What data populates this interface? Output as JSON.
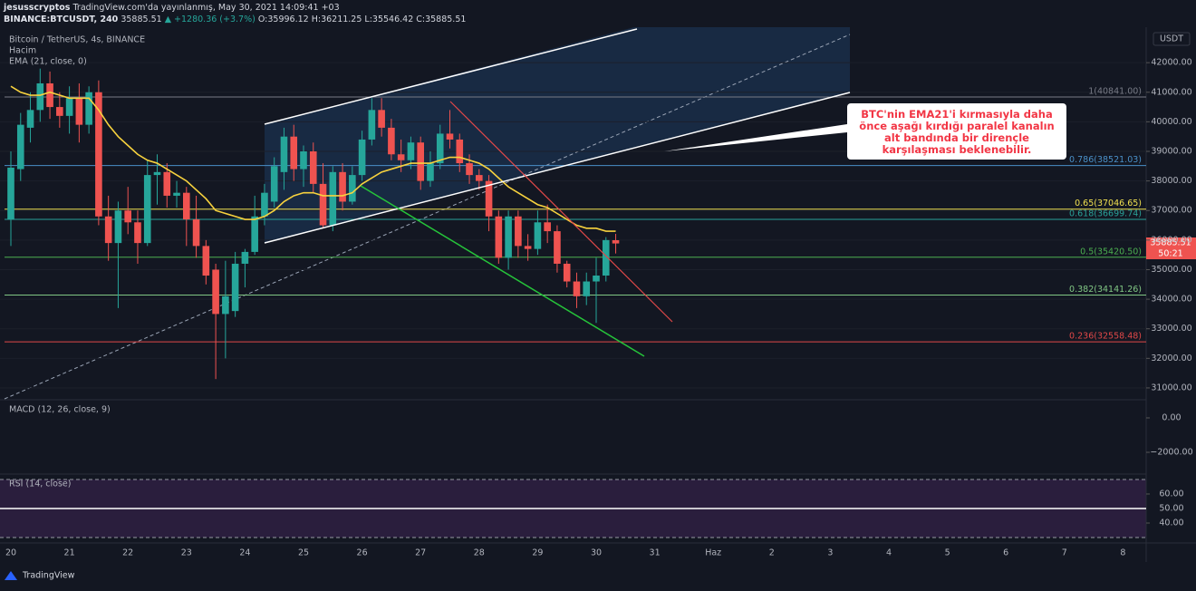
{
  "header": {
    "author": "jesusscryptos",
    "published": "TradingView.com'da yayınlanmış, May 30, 2021 14:09:41 +03",
    "symbol": "BINANCE:BTCUSDT, 240",
    "last": "35885.51",
    "change": "▲ +1280.36 (+3.7%)",
    "ohlc": "O:35996.12 H:36211.25 L:35546.42 C:35885.51"
  },
  "legend": {
    "title": "Bitcoin / TetherUS, 4s, BINANCE",
    "volume": "Hacim",
    "ema": "EMA (21, close, 0)"
  },
  "currency": "USDT",
  "price_tag": {
    "price": "35885.51",
    "countdown": "50:21"
  },
  "annotation": "BTC'nin EMA21'i kırmasıyla daha önce aşağı kırdığı paralel kanalın alt bandında bir dirençle karşılaşması beklenebilir.",
  "footer": "TradingView",
  "chart_data": {
    "type": "candlestick",
    "categories": [
      "20",
      "21",
      "22",
      "23",
      "24",
      "25",
      "26",
      "27",
      "28",
      "29",
      "30",
      "31",
      "Haz",
      "2",
      "3",
      "4",
      "5",
      "6",
      "7",
      "8"
    ],
    "up_color": "#26a69a",
    "down_color": "#ef5350",
    "ylim": [
      30600,
      43200
    ],
    "yticks": [
      {
        "value": 42000,
        "label": "42000.00"
      },
      {
        "value": 41000,
        "label": "41000.00"
      },
      {
        "value": 40000,
        "label": "40000.00"
      },
      {
        "value": 39000,
        "label": "39000.00"
      },
      {
        "value": 38000,
        "label": "38000.00"
      },
      {
        "value": 37000,
        "label": "37000.00"
      },
      {
        "value": 36000,
        "label": "36000.00"
      },
      {
        "value": 35000,
        "label": "35000.00"
      },
      {
        "value": 34000,
        "label": "34000.00"
      },
      {
        "value": 33000,
        "label": "33000.00"
      },
      {
        "value": 32000,
        "label": "32000.00"
      },
      {
        "value": 31000,
        "label": "31000.00"
      }
    ],
    "open": [
      36700,
      38400,
      39800,
      40400,
      41300,
      40500,
      40200,
      40800,
      39900,
      41000,
      36800,
      35900,
      37000,
      36600,
      35900,
      38200,
      38300,
      37500,
      37600,
      36700,
      35800,
      35000,
      33500,
      33600,
      35200,
      35600,
      36800,
      37300,
      38300,
      39500,
      38400,
      39000,
      37900,
      36500,
      38300,
      37300,
      38200,
      39400,
      40400,
      39800,
      38900,
      38700,
      39300,
      38000,
      38600,
      39600,
      39400,
      38600,
      38200,
      38000,
      36800,
      35400,
      36800,
      35800,
      35700,
      36600,
      36300,
      35200,
      34600,
      34100,
      34600,
      34800,
      35996.12
    ],
    "high": [
      39000,
      40300,
      41000,
      41800,
      41700,
      41000,
      41200,
      41300,
      41200,
      41400,
      37500,
      37300,
      37800,
      37000,
      38700,
      38900,
      38600,
      38000,
      37800,
      37500,
      36000,
      35200,
      35300,
      35600,
      35700,
      37500,
      37900,
      38800,
      39800,
      39900,
      39200,
      39300,
      38600,
      38500,
      38600,
      38500,
      39700,
      40800,
      40800,
      40100,
      39400,
      39500,
      39500,
      39000,
      39900,
      40400,
      39600,
      38900,
      38400,
      38200,
      37000,
      37000,
      37000,
      36200,
      37000,
      37200,
      36500,
      35300,
      34900,
      34900,
      35400,
      36100,
      36211.25
    ],
    "low": [
      35800,
      38000,
      39300,
      40000,
      40100,
      39800,
      39600,
      39300,
      39600,
      36500,
      35300,
      33700,
      36200,
      35200,
      35800,
      37200,
      37100,
      37100,
      35800,
      35400,
      34500,
      31300,
      32000,
      33400,
      34400,
      35500,
      36500,
      37100,
      37700,
      38000,
      37800,
      37600,
      36400,
      36300,
      37000,
      37200,
      38000,
      39200,
      39500,
      38700,
      38300,
      38400,
      37700,
      37800,
      38400,
      39100,
      38300,
      37900,
      37700,
      36300,
      35200,
      35000,
      35400,
      35300,
      35500,
      35900,
      34900,
      34400,
      33700,
      33800,
      33200,
      34600,
      35546.42
    ],
    "close": [
      38450,
      39900,
      40400,
      41300,
      40500,
      40200,
      40800,
      39900,
      41000,
      36800,
      35900,
      37000,
      36600,
      35900,
      38200,
      38300,
      37500,
      37600,
      36700,
      35800,
      34800,
      33500,
      34100,
      35200,
      35600,
      36800,
      37600,
      38500,
      39500,
      38400,
      39000,
      37900,
      36500,
      38300,
      37300,
      38200,
      39400,
      40400,
      39800,
      38900,
      38700,
      39300,
      38000,
      38600,
      39600,
      39400,
      38600,
      38200,
      38000,
      36800,
      35400,
      36800,
      35800,
      35700,
      36600,
      36300,
      35200,
      34600,
      34100,
      34600,
      34800,
      36000,
      35885.51
    ],
    "ema": {
      "name": "EMA (21)",
      "color": "#f7d23e",
      "values": [
        41200,
        41000,
        40900,
        40900,
        41000,
        40900,
        40800,
        40800,
        40800,
        40400,
        39900,
        39500,
        39200,
        38900,
        38700,
        38600,
        38400,
        38200,
        38000,
        37700,
        37400,
        37000,
        36900,
        36800,
        36700,
        36700,
        36800,
        37000,
        37300,
        37500,
        37600,
        37600,
        37500,
        37500,
        37500,
        37600,
        37900,
        38100,
        38300,
        38400,
        38500,
        38600,
        38600,
        38600,
        38700,
        38800,
        38800,
        38700,
        38600,
        38400,
        38100,
        37800,
        37600,
        37400,
        37200,
        37100,
        36900,
        36700,
        36500,
        36400,
        36400,
        36300,
        36300
      ]
    },
    "levels": [
      {
        "label": "1(40841.00)",
        "value": 40841,
        "color": "#787b86"
      },
      {
        "label": "0.786(38521.03)",
        "value": 38521.03,
        "color": "#4a90c8"
      },
      {
        "label": "0.65(37046.65)",
        "value": 37046.65,
        "color": "#f0e050"
      },
      {
        "label": "0.618(36699.74)",
        "value": 36699.74,
        "color": "#2aa198"
      },
      {
        "label": "0.5(35420.50)",
        "value": 35420.5,
        "color": "#4caf50"
      },
      {
        "label": "0.382(34141.26)",
        "value": 34141.26,
        "color": "#81c784"
      },
      {
        "label": "0.236(32558.48)",
        "value": 32558.48,
        "color": "#e04848"
      }
    ],
    "macd": {
      "title": "MACD (12, 26, close, 9)",
      "ylim": [
        -3210,
        1000
      ],
      "yticks": [
        {
          "value": 0,
          "label": "0.00"
        },
        {
          "value": -2000,
          "label": "−2000.00"
        }
      ]
    },
    "rsi": {
      "title": "RSI (14, close)",
      "ylim": [
        26.9,
        73.1
      ],
      "yticks": [
        {
          "value": 60,
          "label": "60.00"
        },
        {
          "value": 50,
          "label": "50.00"
        },
        {
          "value": 40,
          "label": "40.00"
        }
      ]
    }
  }
}
